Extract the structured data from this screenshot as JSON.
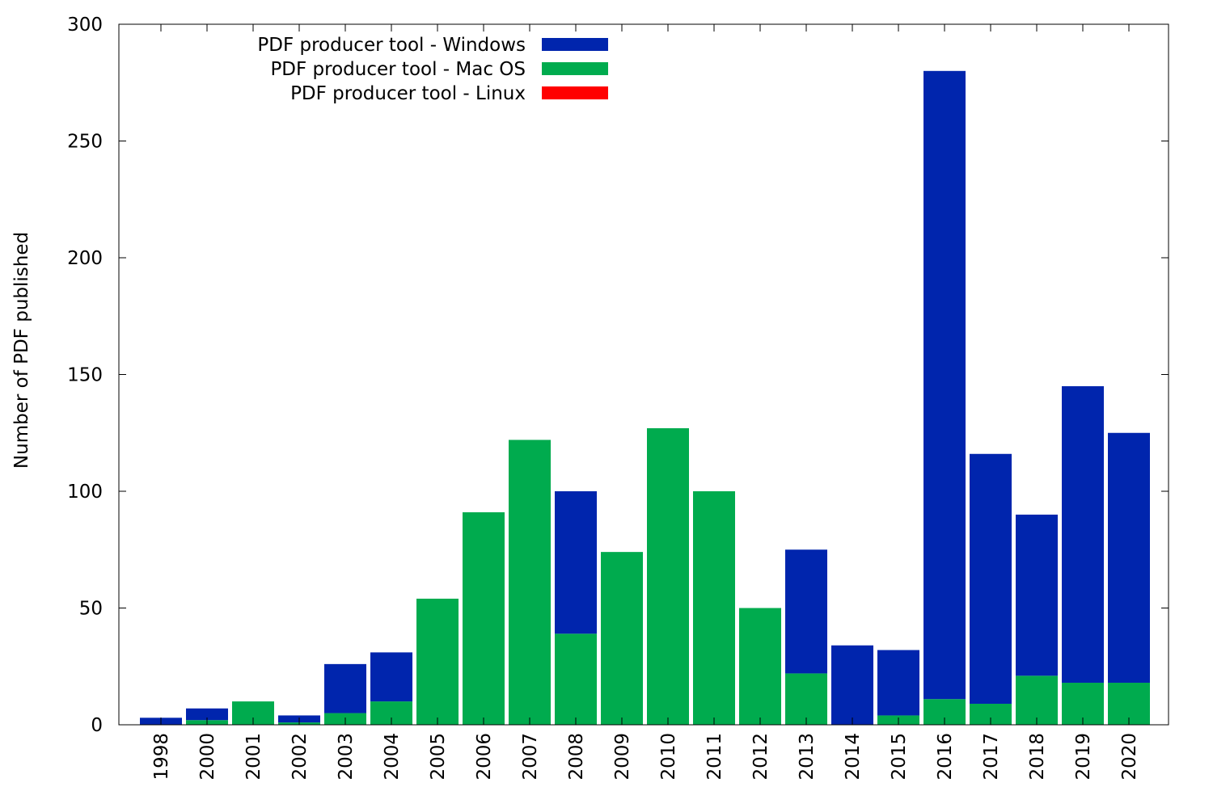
{
  "chart_data": {
    "type": "bar",
    "stacked": true,
    "title": "",
    "xlabel": "",
    "ylabel": "Number of PDF published",
    "ylim": [
      0,
      300
    ],
    "yticks": [
      0,
      50,
      100,
      150,
      200,
      250,
      300
    ],
    "grid": false,
    "legend_position": "top-left",
    "categories": [
      "1998",
      "2000",
      "2001",
      "2002",
      "2003",
      "2004",
      "2005",
      "2006",
      "2007",
      "2008",
      "2009",
      "2010",
      "2011",
      "2012",
      "2013",
      "2014",
      "2015",
      "2016",
      "2017",
      "2018",
      "2019",
      "2020"
    ],
    "series": [
      {
        "name": "PDF producer tool - Windows",
        "color": "#0025ad",
        "values": [
          3,
          5,
          0,
          3,
          21,
          21,
          0,
          0,
          0,
          61,
          0,
          0,
          0,
          0,
          53,
          34,
          28,
          269,
          107,
          69,
          127,
          107
        ]
      },
      {
        "name": "PDF producer tool - Mac OS",
        "color": "#00ab4e",
        "values": [
          0,
          2,
          10,
          1,
          5,
          10,
          54,
          91,
          122,
          39,
          74,
          127,
          100,
          50,
          22,
          0,
          4,
          11,
          9,
          21,
          18,
          18
        ]
      },
      {
        "name": "PDF producer tool - Linux",
        "color": "#ff0000",
        "values": [
          0,
          0,
          0,
          0,
          0,
          0,
          0,
          0,
          0,
          0,
          0,
          0,
          0,
          0,
          0,
          0,
          0,
          0,
          0,
          0,
          0,
          0
        ]
      }
    ]
  }
}
